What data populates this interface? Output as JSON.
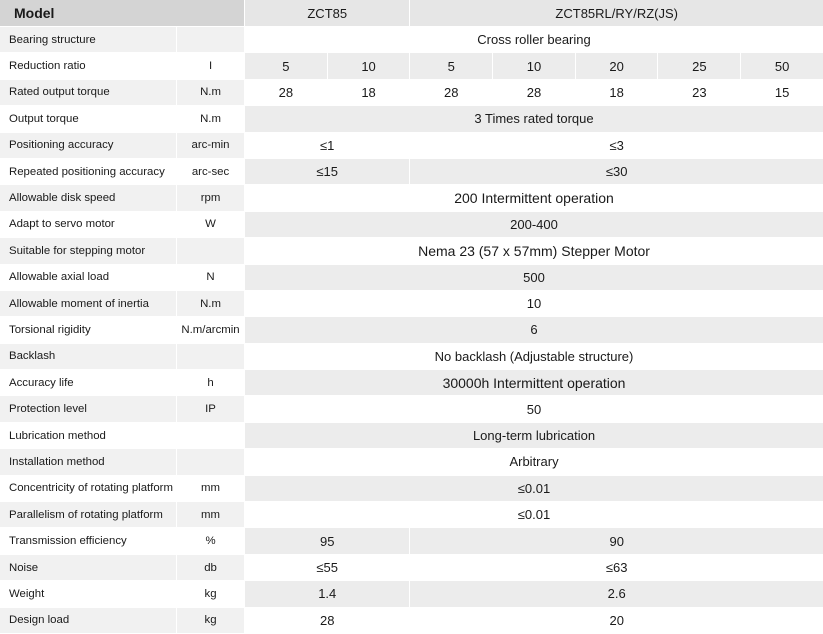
{
  "header": {
    "model_label": "Model",
    "model_a": "ZCT85",
    "model_b": "ZCT85RL/RY/RZ(JS)"
  },
  "rows": [
    {
      "param": "Bearing structure",
      "unit": "",
      "all": "Cross roller bearing"
    },
    {
      "param": "Reduction ratio",
      "unit": "I",
      "cells": [
        "5",
        "10",
        "5",
        "10",
        "20",
        "25",
        "50"
      ]
    },
    {
      "param": "Rated output torque",
      "unit": "N.m",
      "cells": [
        "28",
        "18",
        "28",
        "28",
        "18",
        "23",
        "15"
      ]
    },
    {
      "param": "Output torque",
      "unit": "N.m",
      "all": "3 Times rated torque"
    },
    {
      "param": "Positioning accuracy",
      "unit": "arc-min",
      "a": "≤1",
      "b": "≤3"
    },
    {
      "param": "Repeated positioning accuracy",
      "unit": "arc-sec",
      "a": "≤15",
      "b": "≤30"
    },
    {
      "param": "Allowable disk speed",
      "unit": "rpm",
      "all": "200 Intermittent operation"
    },
    {
      "param": "Adapt to servo motor",
      "unit": "W",
      "all": "200-400"
    },
    {
      "param": "Suitable for stepping motor",
      "unit": "",
      "all": "Nema 23 (57 x 57mm) Stepper Motor"
    },
    {
      "param": "Allowable axial load",
      "unit": "N",
      "all": "500"
    },
    {
      "param": "Allowable moment of inertia",
      "unit": "N.m",
      "all": "10"
    },
    {
      "param": "Torsional rigidity",
      "unit": "N.m/arcmin",
      "all": "6"
    },
    {
      "param": "Backlash",
      "unit": "",
      "all": "No backlash (Adjustable structure)"
    },
    {
      "param": "Accuracy life",
      "unit": "h",
      "all": "30000h Intermittent operation"
    },
    {
      "param": "Protection level",
      "unit": "IP",
      "all": "50"
    },
    {
      "param": "Lubrication method",
      "unit": "",
      "all": "Long-term lubrication"
    },
    {
      "param": "Installation method",
      "unit": "",
      "all": "Arbitrary"
    },
    {
      "param": "Concentricity of rotating platform",
      "unit": "mm",
      "all": "≤0.01"
    },
    {
      "param": "Parallelism of rotating platform",
      "unit": "mm",
      "all": "≤0.01"
    },
    {
      "param": "Transmission efficiency",
      "unit": "%",
      "a": "95",
      "b": "90"
    },
    {
      "param": "Noise",
      "unit": "db",
      "a": "≤55",
      "b": "≤63"
    },
    {
      "param": "Weight",
      "unit": "kg",
      "a": "1.4",
      "b": "2.6"
    },
    {
      "param": "Design load",
      "unit": "kg",
      "a": "28",
      "b": "20"
    }
  ]
}
